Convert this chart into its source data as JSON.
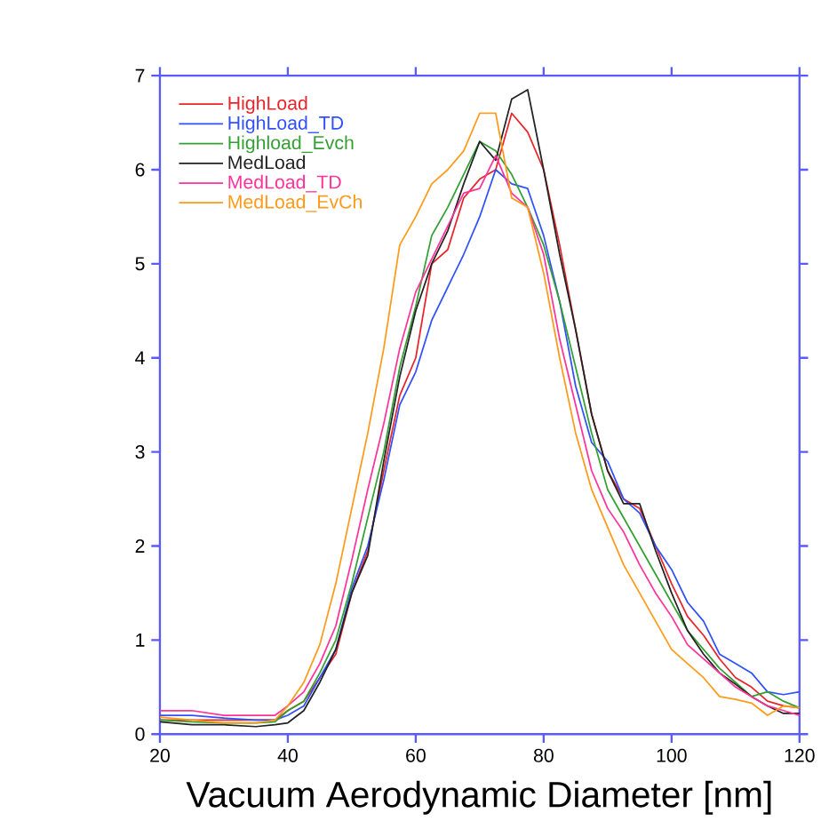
{
  "chart_data": {
    "type": "line",
    "xlabel": "Vacuum Aerodynamic Diameter [nm]",
    "x": [
      20,
      25,
      30,
      35,
      38,
      40,
      42.5,
      45,
      47.5,
      50,
      52.5,
      55,
      57.5,
      60,
      62.5,
      65,
      67.5,
      70,
      72.5,
      75,
      77.5,
      80,
      82.5,
      85,
      87.5,
      90,
      92.5,
      95,
      97.5,
      100,
      102.5,
      105,
      107.5,
      110,
      112.5,
      115,
      117.5,
      120
    ],
    "series": [
      {
        "name": "HighLoad",
        "color": "#e8252a",
        "values": [
          0.15,
          0.15,
          0.15,
          0.15,
          0.15,
          0.25,
          0.35,
          0.6,
          0.85,
          1.5,
          1.95,
          2.8,
          3.6,
          4.0,
          5.0,
          5.15,
          5.7,
          5.9,
          6.0,
          6.6,
          6.4,
          6.0,
          5.2,
          4.3,
          3.4,
          2.8,
          2.5,
          2.4,
          2.0,
          1.6,
          1.25,
          1.05,
          0.8,
          0.6,
          0.5,
          0.35,
          0.3,
          0.28
        ]
      },
      {
        "name": "HighLoad_TD",
        "color": "#3050ff",
        "values": [
          0.2,
          0.2,
          0.17,
          0.15,
          0.15,
          0.2,
          0.3,
          0.6,
          0.9,
          1.55,
          2.0,
          2.7,
          3.5,
          3.85,
          4.4,
          4.75,
          5.1,
          5.5,
          6.0,
          5.85,
          5.8,
          5.3,
          4.6,
          3.7,
          3.1,
          2.9,
          2.5,
          2.35,
          2.0,
          1.75,
          1.4,
          1.2,
          0.85,
          0.75,
          0.65,
          0.45,
          0.42,
          0.45
        ]
      },
      {
        "name": "Highload_Evch",
        "color": "#33a033",
        "values": [
          0.15,
          0.13,
          0.12,
          0.12,
          0.13,
          0.25,
          0.35,
          0.65,
          1.0,
          1.6,
          2.3,
          3.0,
          3.9,
          4.55,
          5.3,
          5.6,
          5.95,
          6.3,
          6.2,
          5.95,
          5.6,
          5.2,
          4.6,
          3.9,
          3.2,
          2.6,
          2.3,
          2.0,
          1.7,
          1.4,
          1.1,
          0.9,
          0.7,
          0.55,
          0.4,
          0.45,
          0.35,
          0.28
        ]
      },
      {
        "name": "MedLoad",
        "color": "#222222",
        "values": [
          0.13,
          0.1,
          0.1,
          0.08,
          0.1,
          0.12,
          0.25,
          0.55,
          0.9,
          1.5,
          1.9,
          2.9,
          3.8,
          4.5,
          5.0,
          5.35,
          5.85,
          6.3,
          6.1,
          6.75,
          6.85,
          6.0,
          5.1,
          4.3,
          3.4,
          2.8,
          2.45,
          2.45,
          1.95,
          1.5,
          1.1,
          0.85,
          0.65,
          0.53,
          0.4,
          0.3,
          0.22,
          0.22
        ]
      },
      {
        "name": "MedLoad_TD",
        "color": "#ff3399",
        "values": [
          0.25,
          0.25,
          0.2,
          0.2,
          0.2,
          0.3,
          0.45,
          0.75,
          1.15,
          1.85,
          2.6,
          3.3,
          4.1,
          4.7,
          5.05,
          5.4,
          5.75,
          5.8,
          6.15,
          5.75,
          5.6,
          5.1,
          4.2,
          3.5,
          2.8,
          2.4,
          2.15,
          1.8,
          1.5,
          1.25,
          0.95,
          0.8,
          0.65,
          0.5,
          0.4,
          0.3,
          0.25,
          0.2
        ]
      },
      {
        "name": "MedLoad_EvCh",
        "color": "#ff9a1a",
        "values": [
          0.18,
          0.15,
          0.12,
          0.12,
          0.15,
          0.3,
          0.55,
          0.95,
          1.6,
          2.4,
          3.2,
          4.1,
          5.2,
          5.5,
          5.85,
          6.0,
          6.2,
          6.6,
          6.6,
          5.7,
          5.6,
          4.9,
          4.0,
          3.2,
          2.6,
          2.2,
          1.8,
          1.5,
          1.2,
          0.9,
          0.75,
          0.6,
          0.4,
          0.37,
          0.33,
          0.2,
          0.3,
          0.28
        ]
      }
    ],
    "xlim": [
      20,
      120
    ],
    "xticks": [
      20,
      40,
      60,
      80,
      100,
      120
    ],
    "ylim": [
      0,
      7
    ],
    "yticks": [
      0,
      1,
      2,
      3,
      4,
      5,
      6,
      7
    ],
    "legend": "top left"
  }
}
